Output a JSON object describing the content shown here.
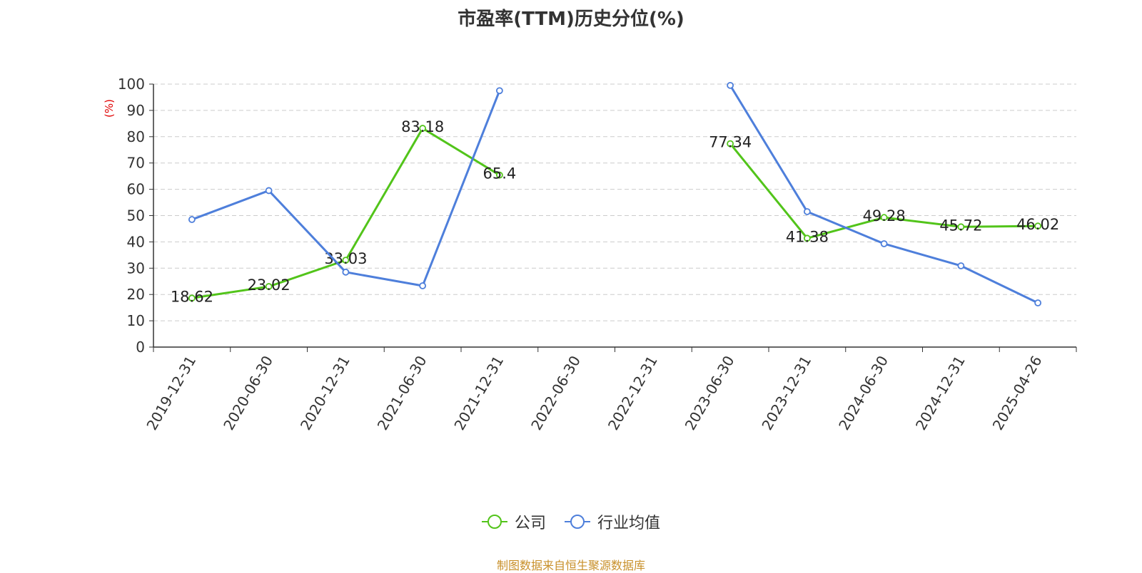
{
  "chart_data": {
    "type": "line",
    "title": "市盈率(TTM)历史分位(%)",
    "ylabel": "(%)",
    "ylim": [
      0,
      100
    ],
    "yticks": [
      0,
      10,
      20,
      30,
      40,
      50,
      60,
      70,
      80,
      90,
      100
    ],
    "grid": true,
    "legend_position": "bottom",
    "categories": [
      "2019-12-31",
      "2020-06-30",
      "2020-12-31",
      "2021-06-30",
      "2021-12-31",
      "2022-06-30",
      "2022-12-31",
      "2023-06-30",
      "2023-12-31",
      "2024-06-30",
      "2024-12-31",
      "2025-04-26"
    ],
    "series": [
      {
        "name": "公司",
        "color": "#52c41a",
        "values": [
          18.62,
          23.02,
          33.03,
          83.18,
          65.4,
          null,
          null,
          77.34,
          41.38,
          49.28,
          45.72,
          46.02
        ],
        "labels": [
          "18.62",
          "23.02",
          "33.03",
          "83.18",
          "65.4",
          null,
          null,
          "77.34",
          "41.38",
          "49.28",
          "45.72",
          "46.02"
        ]
      },
      {
        "name": "行业均值",
        "color": "#4e7fdb",
        "values": [
          48.5,
          59.5,
          28.5,
          23.3,
          97.5,
          null,
          null,
          99.5,
          51.5,
          39.3,
          30.9,
          16.8
        ],
        "labels": []
      }
    ]
  },
  "source_note": "制图数据来自恒生聚源数据库"
}
